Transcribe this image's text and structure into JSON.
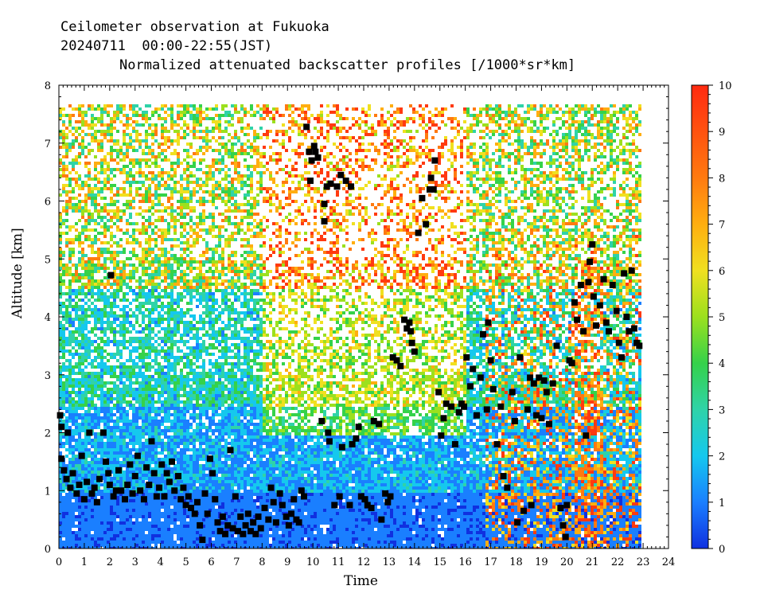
{
  "header": {
    "line1": "Ceilometer observation at Fukuoka",
    "line2": "20240711  00:00-22:55(JST)",
    "line3": "Normalized attenuated backscatter profiles [/1000*sr*km]"
  },
  "chart_data": {
    "type": "heatmap",
    "title": "Normalized attenuated backscatter profiles [/1000*sr*km]",
    "xlabel": "Time",
    "ylabel": "Altitude [km]",
    "xlim": [
      0,
      24
    ],
    "ylim": [
      0,
      8
    ],
    "x_ticks": [
      0,
      1,
      2,
      3,
      4,
      5,
      6,
      7,
      8,
      9,
      10,
      11,
      12,
      13,
      14,
      15,
      16,
      17,
      18,
      19,
      20,
      21,
      22,
      23,
      24
    ],
    "y_ticks": [
      0,
      1,
      2,
      3,
      4,
      5,
      6,
      7,
      8
    ],
    "colorbar": {
      "range": [
        0,
        10
      ],
      "ticks": [
        0,
        1,
        2,
        3,
        4,
        5,
        6,
        7,
        8,
        9,
        10
      ],
      "colors": [
        "#1030e0",
        "#1a7fff",
        "#15c8ee",
        "#2fd3a8",
        "#35d24a",
        "#9ce01e",
        "#f0e020",
        "#ffae10",
        "#ff7a10",
        "#ff3a10"
      ]
    },
    "data_end_hour": 22.92,
    "cloud_base_points": [
      [
        0.05,
        2.3
      ],
      [
        0.1,
        2.1
      ],
      [
        0.1,
        1.55
      ],
      [
        0.2,
        1.35
      ],
      [
        0.3,
        1.2
      ],
      [
        0.35,
        2.0
      ],
      [
        0.45,
        1.05
      ],
      [
        0.55,
        1.3
      ],
      [
        0.7,
        0.95
      ],
      [
        0.8,
        1.1
      ],
      [
        0.9,
        1.6
      ],
      [
        1.0,
        0.85
      ],
      [
        1.1,
        1.15
      ],
      [
        1.2,
        2.0
      ],
      [
        1.3,
        0.95
      ],
      [
        1.4,
        1.05
      ],
      [
        1.5,
        0.8
      ],
      [
        1.6,
        1.2
      ],
      [
        1.75,
        2.0
      ],
      [
        1.85,
        1.5
      ],
      [
        1.95,
        1.3
      ],
      [
        2.0,
        1.1
      ],
      [
        2.05,
        4.72
      ],
      [
        2.15,
        0.9
      ],
      [
        2.25,
        1.0
      ],
      [
        2.35,
        1.35
      ],
      [
        2.45,
        1.0
      ],
      [
        2.6,
        0.85
      ],
      [
        2.7,
        1.1
      ],
      [
        2.8,
        1.45
      ],
      [
        2.9,
        0.95
      ],
      [
        3.0,
        1.25
      ],
      [
        3.1,
        1.6
      ],
      [
        3.2,
        1.0
      ],
      [
        3.35,
        0.85
      ],
      [
        3.45,
        1.4
      ],
      [
        3.55,
        1.1
      ],
      [
        3.65,
        1.85
      ],
      [
        3.75,
        1.3
      ],
      [
        3.85,
        0.9
      ],
      [
        3.95,
        1.05
      ],
      [
        4.05,
        1.45
      ],
      [
        4.15,
        0.9
      ],
      [
        4.25,
        1.3
      ],
      [
        4.35,
        1.15
      ],
      [
        4.45,
        1.5
      ],
      [
        4.55,
        1.0
      ],
      [
        4.7,
        1.25
      ],
      [
        4.8,
        0.85
      ],
      [
        4.9,
        1.05
      ],
      [
        5.0,
        0.75
      ],
      [
        5.1,
        0.9
      ],
      [
        5.2,
        0.7
      ],
      [
        5.35,
        0.6
      ],
      [
        5.45,
        0.8
      ],
      [
        5.55,
        0.4
      ],
      [
        5.65,
        0.15
      ],
      [
        5.75,
        0.95
      ],
      [
        5.85,
        0.6
      ],
      [
        5.95,
        1.55
      ],
      [
        6.05,
        1.3
      ],
      [
        6.15,
        0.85
      ],
      [
        6.25,
        0.45
      ],
      [
        6.35,
        0.3
      ],
      [
        6.45,
        0.55
      ],
      [
        6.55,
        0.25
      ],
      [
        6.65,
        0.4
      ],
      [
        6.75,
        1.7
      ],
      [
        6.85,
        0.35
      ],
      [
        6.95,
        0.9
      ],
      [
        7.05,
        0.3
      ],
      [
        7.15,
        0.55
      ],
      [
        7.25,
        0.25
      ],
      [
        7.35,
        0.4
      ],
      [
        7.45,
        0.6
      ],
      [
        7.55,
        0.3
      ],
      [
        7.65,
        0.45
      ],
      [
        7.75,
        0.25
      ],
      [
        7.85,
        0.55
      ],
      [
        7.95,
        0.35
      ],
      [
        8.1,
        0.7
      ],
      [
        8.25,
        0.5
      ],
      [
        8.35,
        1.05
      ],
      [
        8.45,
        0.8
      ],
      [
        8.55,
        0.45
      ],
      [
        8.7,
        0.95
      ],
      [
        8.8,
        0.75
      ],
      [
        8.95,
        0.55
      ],
      [
        9.05,
        0.4
      ],
      [
        9.15,
        0.6
      ],
      [
        9.25,
        0.85
      ],
      [
        9.35,
        0.5
      ],
      [
        9.45,
        0.45
      ],
      [
        9.55,
        1.0
      ],
      [
        9.65,
        0.9
      ],
      [
        9.75,
        7.28
      ],
      [
        9.85,
        6.85
      ],
      [
        9.9,
        6.35
      ],
      [
        9.95,
        6.7
      ],
      [
        10.05,
        6.95
      ],
      [
        10.1,
        6.85
      ],
      [
        10.2,
        6.75
      ],
      [
        10.35,
        2.2
      ],
      [
        10.45,
        5.95
      ],
      [
        10.45,
        5.65
      ],
      [
        10.55,
        6.25
      ],
      [
        10.6,
        2.0
      ],
      [
        10.65,
        1.85
      ],
      [
        10.7,
        6.3
      ],
      [
        10.85,
        0.75
      ],
      [
        10.95,
        6.25
      ],
      [
        11.05,
        0.9
      ],
      [
        11.1,
        6.45
      ],
      [
        11.15,
        1.75
      ],
      [
        11.3,
        6.35
      ],
      [
        11.45,
        0.75
      ],
      [
        11.5,
        6.25
      ],
      [
        11.55,
        1.8
      ],
      [
        11.7,
        1.9
      ],
      [
        11.8,
        2.1
      ],
      [
        11.9,
        0.9
      ],
      [
        12.05,
        0.85
      ],
      [
        12.15,
        0.75
      ],
      [
        12.3,
        0.7
      ],
      [
        12.4,
        2.2
      ],
      [
        12.6,
        2.15
      ],
      [
        12.7,
        0.5
      ],
      [
        12.85,
        0.95
      ],
      [
        12.95,
        0.8
      ],
      [
        13.05,
        0.9
      ],
      [
        13.15,
        3.3
      ],
      [
        13.3,
        3.25
      ],
      [
        13.45,
        3.15
      ],
      [
        13.6,
        3.95
      ],
      [
        13.7,
        3.8
      ],
      [
        13.8,
        3.9
      ],
      [
        13.85,
        3.75
      ],
      [
        13.9,
        3.55
      ],
      [
        14.0,
        3.4
      ],
      [
        14.15,
        5.45
      ],
      [
        14.3,
        6.05
      ],
      [
        14.45,
        5.6
      ],
      [
        14.6,
        6.2
      ],
      [
        14.65,
        6.4
      ],
      [
        14.75,
        6.2
      ],
      [
        14.8,
        6.7
      ],
      [
        14.95,
        2.7
      ],
      [
        15.05,
        1.95
      ],
      [
        15.15,
        2.25
      ],
      [
        15.25,
        2.5
      ],
      [
        15.45,
        2.45
      ],
      [
        15.6,
        1.8
      ],
      [
        15.75,
        2.35
      ],
      [
        15.85,
        2.5
      ],
      [
        15.95,
        2.45
      ],
      [
        16.05,
        3.3
      ],
      [
        16.2,
        2.8
      ],
      [
        16.3,
        3.1
      ],
      [
        16.45,
        2.3
      ],
      [
        16.6,
        2.95
      ],
      [
        16.7,
        3.7
      ],
      [
        16.85,
        2.4
      ],
      [
        16.9,
        3.9
      ],
      [
        17.0,
        3.25
      ],
      [
        17.1,
        2.75
      ],
      [
        17.25,
        1.8
      ],
      [
        17.4,
        2.45
      ],
      [
        17.5,
        1.25
      ],
      [
        17.65,
        1.05
      ],
      [
        17.85,
        2.7
      ],
      [
        17.95,
        2.2
      ],
      [
        18.05,
        0.45
      ],
      [
        18.15,
        3.3
      ],
      [
        18.3,
        0.65
      ],
      [
        18.45,
        2.4
      ],
      [
        18.55,
        2.95
      ],
      [
        18.6,
        0.75
      ],
      [
        18.7,
        2.85
      ],
      [
        18.8,
        2.3
      ],
      [
        18.9,
        2.95
      ],
      [
        19.0,
        2.25
      ],
      [
        19.1,
        2.9
      ],
      [
        19.2,
        2.7
      ],
      [
        19.3,
        2.15
      ],
      [
        19.45,
        2.85
      ],
      [
        19.6,
        3.5
      ],
      [
        19.75,
        0.7
      ],
      [
        19.85,
        0.4
      ],
      [
        19.95,
        0.2
      ],
      [
        20.0,
        0.75
      ],
      [
        20.1,
        3.25
      ],
      [
        20.2,
        3.2
      ],
      [
        20.3,
        4.25
      ],
      [
        20.4,
        3.95
      ],
      [
        20.55,
        4.55
      ],
      [
        20.65,
        3.75
      ],
      [
        20.75,
        1.95
      ],
      [
        20.85,
        4.6
      ],
      [
        20.9,
        4.95
      ],
      [
        21.0,
        5.25
      ],
      [
        21.05,
        4.35
      ],
      [
        21.15,
        3.85
      ],
      [
        21.3,
        4.2
      ],
      [
        21.45,
        4.65
      ],
      [
        21.55,
        3.9
      ],
      [
        21.65,
        3.75
      ],
      [
        21.8,
        4.55
      ],
      [
        21.95,
        4.1
      ],
      [
        22.05,
        3.55
      ],
      [
        22.15,
        3.3
      ],
      [
        22.25,
        4.75
      ],
      [
        22.35,
        4.0
      ],
      [
        22.45,
        3.75
      ],
      [
        22.55,
        4.8
      ],
      [
        22.65,
        3.8
      ],
      [
        22.75,
        3.55
      ],
      [
        22.85,
        3.5
      ]
    ]
  }
}
